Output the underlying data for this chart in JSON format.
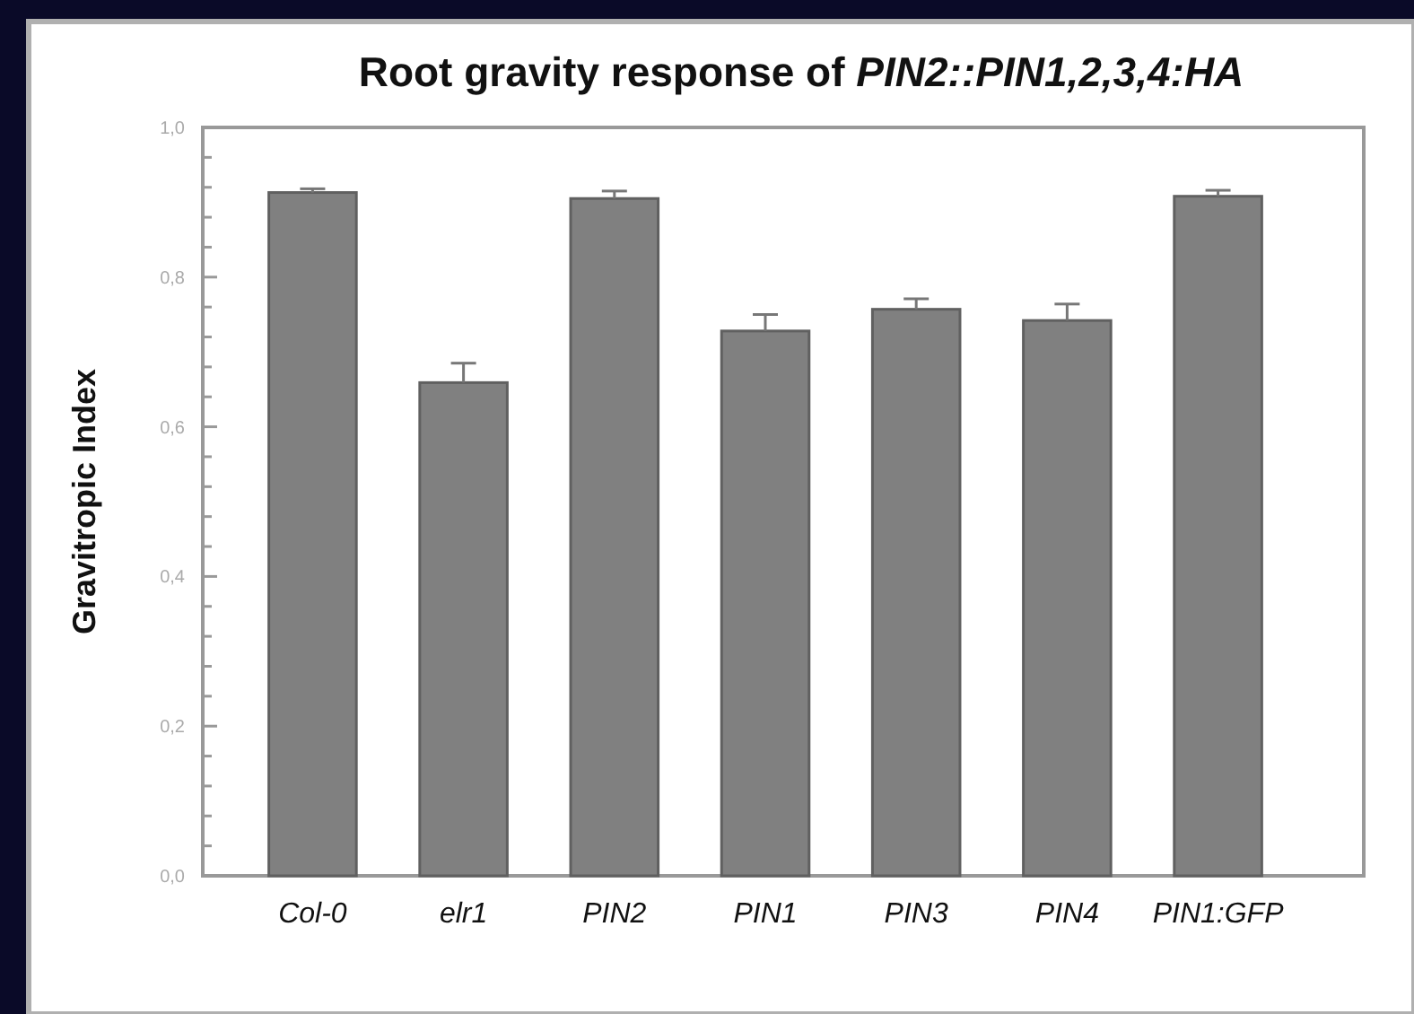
{
  "chart_data": {
    "type": "bar",
    "title": "Root gravity response of PIN2::PIN1,2,3,4:HA",
    "ylabel": "Gravitropic Index",
    "categories": [
      "Col-0",
      "elr1",
      "PIN2",
      "PIN1",
      "PIN3",
      "PIN4",
      "PIN1:GFP"
    ],
    "values": [
      0.913,
      0.659,
      0.905,
      0.728,
      0.757,
      0.742,
      0.908
    ],
    "errors": [
      [
        0.913,
        0.918
      ],
      [
        0.659,
        0.685
      ],
      [
        0.905,
        0.915
      ],
      [
        0.728,
        0.75
      ],
      [
        0.757,
        0.771
      ],
      [
        0.742,
        0.764
      ],
      [
        0.908,
        0.916
      ]
    ],
    "color": "#808080",
    "ylim": [
      0,
      1
    ],
    "yticks": [
      {
        "value": 0,
        "label": "0,0"
      },
      {
        "value": 0.04,
        "label": null
      },
      {
        "value": 0.08,
        "label": null
      },
      {
        "value": 0.12,
        "label": null
      },
      {
        "value": 0.16,
        "label": null
      },
      {
        "value": 0.2,
        "label": "0,2"
      },
      {
        "value": 0.24,
        "label": null
      },
      {
        "value": 0.28,
        "label": null
      },
      {
        "value": 0.32,
        "label": null
      },
      {
        "value": 0.36,
        "label": null
      },
      {
        "value": 0.4,
        "label": "0,4"
      },
      {
        "value": 0.44,
        "label": null
      },
      {
        "value": 0.48,
        "label": null
      },
      {
        "value": 0.52,
        "label": null
      },
      {
        "value": 0.56,
        "label": null
      },
      {
        "value": 0.6,
        "label": "0,6"
      },
      {
        "value": 0.64,
        "label": null
      },
      {
        "value": 0.68,
        "label": null
      },
      {
        "value": 0.72,
        "label": null
      },
      {
        "value": 0.76,
        "label": null
      },
      {
        "value": 0.8,
        "label": "0,8"
      },
      {
        "value": 0.84,
        "label": null
      },
      {
        "value": 0.88,
        "label": null
      },
      {
        "value": 0.92,
        "label": null
      },
      {
        "value": 0.96,
        "label": null
      },
      {
        "value": 1,
        "label": "1,0"
      }
    ]
  }
}
